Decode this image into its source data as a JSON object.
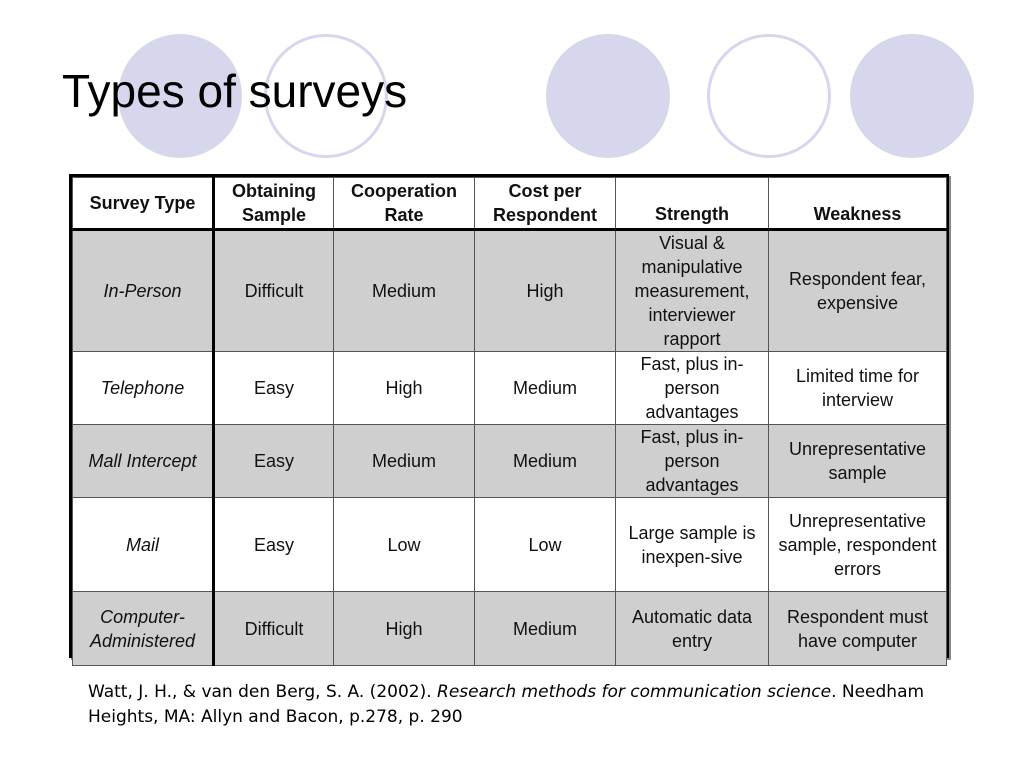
{
  "slide": {
    "title": "Types of surveys",
    "accent_color": "#d6d6ec"
  },
  "table": {
    "headers": [
      "Survey Type",
      "Obtaining Sample",
      "Cooperation Rate",
      "Cost per Respondent",
      "Strength",
      "Weakness"
    ],
    "rows": [
      [
        "In-Person",
        "Difficult",
        "Medium",
        "High",
        "Visual & manipulative measurement, interviewer rapport",
        "Respondent fear, expensive"
      ],
      [
        "Telephone",
        "Easy",
        "High",
        "Medium",
        "Fast, plus in-person advantages",
        "Limited time for interview"
      ],
      [
        "Mall Intercept",
        "Easy",
        "Medium",
        "Medium",
        "Fast, plus in-person advantages",
        "Unrepresentative sample"
      ],
      [
        "Mail",
        "Easy",
        "Low",
        "Low",
        "Large sample is inexpen-sive",
        "Unrepresentative sample, respondent errors"
      ],
      [
        "Computer-Administered",
        "Difficult",
        "High",
        "Medium",
        "Automatic data entry",
        "Respondent must have computer"
      ]
    ]
  },
  "citation": {
    "prefix": "Watt, J. H., & van den Berg, S. A. (2002). ",
    "book_title": "Research methods for communication science",
    "suffix": ". Needham Heights, MA: Allyn and Bacon, p.278, p. 290"
  }
}
